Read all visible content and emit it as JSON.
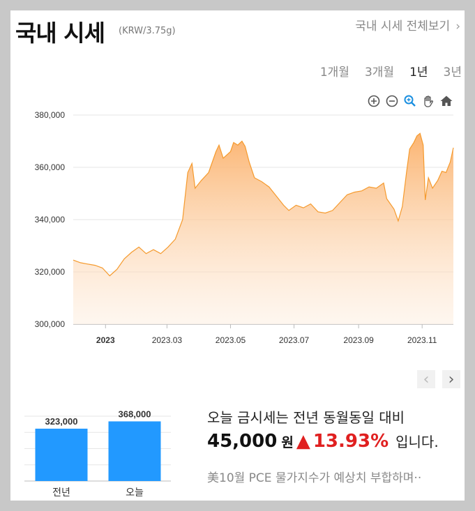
{
  "header": {
    "title": "국내 시세",
    "unit": "(KRW/3.75g)",
    "more_label": "국내 시세 전체보기",
    "more_chevron": "›"
  },
  "ranges": [
    {
      "label": "1개월",
      "active": false
    },
    {
      "label": "3개월",
      "active": false
    },
    {
      "label": "1년",
      "active": true
    },
    {
      "label": "3년",
      "active": false
    }
  ],
  "tools": [
    "zoom-in-icon",
    "zoom-out-icon",
    "magnify-icon",
    "pan-hand-icon",
    "home-icon"
  ],
  "chart_data": {
    "type": "area",
    "x_start": "2022-12-01",
    "x_end": "2023-12-01",
    "ylim": [
      300000,
      380000
    ],
    "yticks": [
      "380,000",
      "360,000",
      "340,000",
      "320,000",
      "300,000"
    ],
    "ytick_values": [
      380000,
      360000,
      340000,
      320000,
      300000
    ],
    "xticks": [
      {
        "label": "2023",
        "date": "2023-01-01",
        "bold": true
      },
      {
        "label": "2023.03",
        "date": "2023-03-01",
        "bold": false
      },
      {
        "label": "2023.05",
        "date": "2023-05-01",
        "bold": false
      },
      {
        "label": "2023.07",
        "date": "2023-07-01",
        "bold": false
      },
      {
        "label": "2023.09",
        "date": "2023-09-01",
        "bold": false
      },
      {
        "label": "2023.11",
        "date": "2023-11-01",
        "bold": false
      }
    ],
    "line_color": "#f59a2d",
    "fill_color": "#fbb77a",
    "points": [
      [
        "2022-12-01",
        324500
      ],
      [
        "2022-12-08",
        323500
      ],
      [
        "2022-12-15",
        323000
      ],
      [
        "2022-12-22",
        322500
      ],
      [
        "2022-12-29",
        321500
      ],
      [
        "2023-01-05",
        318500
      ],
      [
        "2023-01-12",
        321000
      ],
      [
        "2023-01-19",
        325000
      ],
      [
        "2023-01-26",
        327500
      ],
      [
        "2023-02-02",
        329500
      ],
      [
        "2023-02-09",
        327000
      ],
      [
        "2023-02-16",
        328500
      ],
      [
        "2023-02-23",
        327000
      ],
      [
        "2023-03-02",
        329500
      ],
      [
        "2023-03-09",
        332500
      ],
      [
        "2023-03-16",
        340000
      ],
      [
        "2023-03-21",
        358000
      ],
      [
        "2023-03-25",
        361500
      ],
      [
        "2023-03-28",
        352000
      ],
      [
        "2023-04-03",
        355000
      ],
      [
        "2023-04-10",
        358000
      ],
      [
        "2023-04-17",
        366000
      ],
      [
        "2023-04-20",
        368500
      ],
      [
        "2023-04-24",
        363500
      ],
      [
        "2023-05-01",
        366000
      ],
      [
        "2023-05-04",
        369500
      ],
      [
        "2023-05-08",
        368500
      ],
      [
        "2023-05-12",
        370000
      ],
      [
        "2023-05-15",
        368000
      ],
      [
        "2023-05-19",
        362000
      ],
      [
        "2023-05-24",
        356000
      ],
      [
        "2023-05-31",
        354500
      ],
      [
        "2023-06-07",
        352500
      ],
      [
        "2023-06-14",
        349000
      ],
      [
        "2023-06-21",
        345500
      ],
      [
        "2023-06-26",
        343500
      ],
      [
        "2023-07-03",
        345500
      ],
      [
        "2023-07-10",
        344500
      ],
      [
        "2023-07-17",
        346000
      ],
      [
        "2023-07-24",
        343000
      ],
      [
        "2023-07-31",
        342500
      ],
      [
        "2023-08-07",
        343500
      ],
      [
        "2023-08-14",
        346500
      ],
      [
        "2023-08-21",
        349500
      ],
      [
        "2023-08-28",
        350500
      ],
      [
        "2023-09-04",
        351000
      ],
      [
        "2023-09-11",
        352500
      ],
      [
        "2023-09-18",
        352000
      ],
      [
        "2023-09-25",
        354000
      ],
      [
        "2023-09-28",
        348000
      ],
      [
        "2023-10-05",
        344000
      ],
      [
        "2023-10-09",
        339500
      ],
      [
        "2023-10-13",
        345000
      ],
      [
        "2023-10-17",
        358000
      ],
      [
        "2023-10-20",
        367000
      ],
      [
        "2023-10-24",
        369500
      ],
      [
        "2023-10-27",
        372000
      ],
      [
        "2023-10-30",
        373000
      ],
      [
        "2023-11-02",
        368500
      ],
      [
        "2023-11-04",
        347500
      ],
      [
        "2023-11-07",
        356000
      ],
      [
        "2023-11-11",
        352000
      ],
      [
        "2023-11-16",
        355000
      ],
      [
        "2023-11-20",
        358500
      ],
      [
        "2023-11-24",
        358000
      ],
      [
        "2023-11-28",
        362000
      ],
      [
        "2023-12-01",
        367500
      ]
    ]
  },
  "comparison": {
    "type": "bar",
    "bar_color": "#2299ff",
    "ylim": [
      0,
      400000
    ],
    "bars": [
      {
        "label": "전년",
        "value": 323000,
        "value_label": "323,000"
      },
      {
        "label": "오늘",
        "value": 368000,
        "value_label": "368,000"
      }
    ]
  },
  "pager": {
    "prev": "‹",
    "next": "›"
  },
  "summary": {
    "line1": "오늘 금시세는 전년 동월동일 대비",
    "diff": "45,000",
    "won": "원",
    "arrow": "▲",
    "percent": "13.93%",
    "tail": "입니다."
  },
  "news": "美10월 PCE 물가지수가 예상치 부합하며··"
}
